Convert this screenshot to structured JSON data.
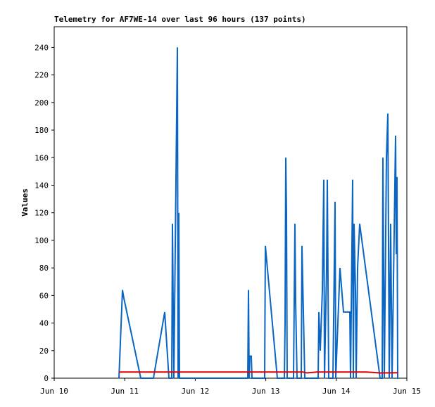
{
  "chart_data": {
    "type": "line",
    "title": "Telemetry for AF7WE-14 over last 96 hours (137 points)",
    "y_label": "Values",
    "xlim": [
      10,
      15
    ],
    "xticks": [
      {
        "value": 10,
        "label": "Jun 10"
      },
      {
        "value": 11,
        "label": "Jun 11"
      },
      {
        "value": 12,
        "label": "Jun 12"
      },
      {
        "value": 13,
        "label": "Jun 13"
      },
      {
        "value": 14,
        "label": "Jun 14"
      },
      {
        "value": 15,
        "label": "Jun 15"
      }
    ],
    "ylim": [
      0,
      255
    ],
    "yticks": [
      0,
      20,
      40,
      60,
      80,
      100,
      120,
      140,
      160,
      180,
      200,
      220,
      240
    ],
    "grid": false,
    "series": [
      {
        "color": "#0a66c2",
        "x": [
          10.918,
          10.968,
          10.988,
          11.228,
          11.407,
          11.567,
          11.627,
          11.667,
          11.677,
          11.697,
          11.747,
          11.756,
          11.766,
          11.776,
          12.745,
          12.754,
          12.764,
          12.774,
          12.794,
          12.804,
          12.984,
          12.994,
          13.164,
          13.263,
          13.273,
          13.283,
          13.293,
          13.303,
          13.393,
          13.413,
          13.423,
          13.443,
          13.503,
          13.513,
          13.553,
          13.743,
          13.752,
          13.772,
          13.802,
          13.822,
          13.832,
          13.862,
          13.872,
          13.892,
          13.952,
          13.982,
          13.992,
          14.022,
          14.052,
          14.102,
          14.192,
          14.202,
          14.232,
          14.242,
          14.251,
          14.271,
          14.281,
          14.301,
          14.331,
          14.621,
          14.651,
          14.661,
          14.681,
          14.711,
          14.731,
          14.75,
          14.77,
          14.79,
          14.84,
          14.85,
          14.86,
          14.87,
          14.88
        ],
        "values": [
          0,
          64,
          58,
          0,
          0,
          48,
          0,
          0,
          112,
          0,
          240,
          0,
          120,
          0,
          0,
          64,
          0,
          16,
          16,
          0,
          0,
          96,
          0,
          0,
          40,
          160,
          120,
          0,
          0,
          112,
          56,
          0,
          0,
          96,
          0,
          0,
          48,
          20,
          64,
          144,
          0,
          80,
          144,
          0,
          0,
          128,
          0,
          40,
          80,
          48,
          48,
          0,
          144,
          0,
          112,
          64,
          0,
          80,
          112,
          0,
          0,
          160,
          0,
          160,
          192,
          0,
          112,
          0,
          176,
          90,
          146,
          0,
          0
        ]
      },
      {
        "color": "#e00000",
        "x": [
          10.918,
          13.523,
          13.583,
          13.723,
          14.421,
          14.621,
          14.88
        ],
        "values": [
          4.5,
          4.5,
          3.8,
          4.5,
          4.5,
          3.8,
          4
        ]
      }
    ]
  }
}
